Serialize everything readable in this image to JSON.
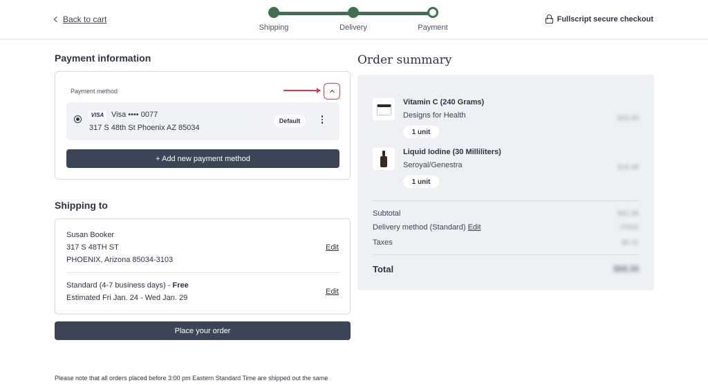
{
  "header": {
    "back_label": "Back to cart",
    "steps": [
      "Shipping",
      "Delivery",
      "Payment"
    ],
    "secure_label": "Fullscript secure checkout"
  },
  "payment": {
    "title": "Payment information",
    "method_label": "Payment method",
    "card_brand": "VISA",
    "card_number": "Visa •••• 0077",
    "card_address": "317 S 48th St Phoenix AZ 85034",
    "default_label": "Default",
    "add_button": "+ Add new payment method"
  },
  "shipping": {
    "title": "Shipping to",
    "name": "Susan Booker",
    "street": "317 S 48TH ST",
    "city": "PHOENIX, Arizona 85034-3103",
    "method": "Standard (4-7 business days) - ",
    "method_free": "Free",
    "estimate": "Estimated Fri Jan. 24 - Wed Jan. 29",
    "edit_label": "Edit"
  },
  "place_order_label": "Place your order",
  "note_text": "Please note that all orders placed before 3:00 pm Eastern Standard Time are shipped out the same",
  "order_summary": {
    "title": "Order summary",
    "items": [
      {
        "name": "Vitamin C (240 Grams)",
        "brand": "Designs for Health",
        "qty": "1 unit",
        "price": "$43.99",
        "icon": "jar-icon"
      },
      {
        "name": "Liquid Iodine (30 Milliliters)",
        "brand": "Seroyal/Genestra",
        "qty": "1 unit",
        "price": "$18.99",
        "icon": "bottle-icon"
      }
    ],
    "subtotal_label": "Subtotal",
    "subtotal_value": "$62.98",
    "delivery_label": "Delivery method (Standard) ",
    "delivery_edit": "Edit",
    "delivery_value": "FREE",
    "taxes_label": "Taxes",
    "taxes_value": "$5.41",
    "total_label": "Total",
    "total_value": "$68.39"
  },
  "colors": {
    "accent_green": "#3f7150",
    "button_dark": "#3b4555",
    "highlight_red": "#d23a55",
    "summary_bg": "#eef0f4"
  }
}
